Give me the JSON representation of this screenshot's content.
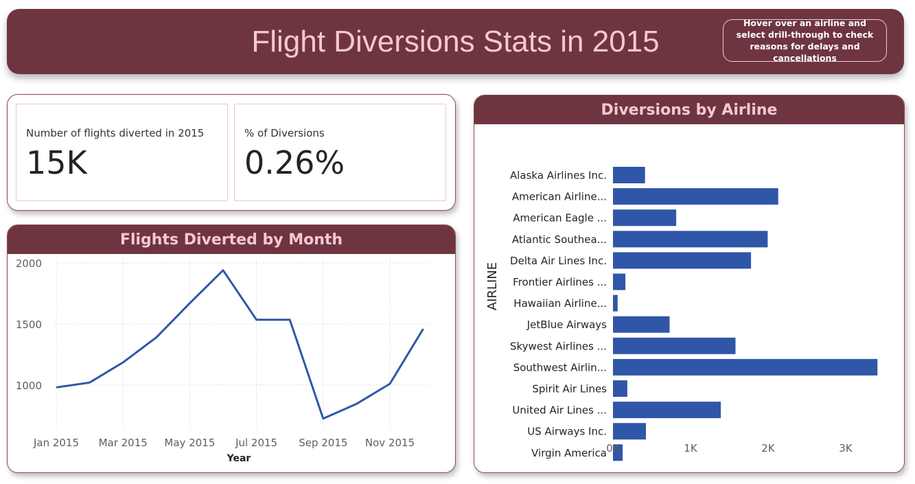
{
  "header": {
    "title": "Flight Diversions Stats in 2015",
    "hint": "Hover over an airline and select drill-through to check reasons for delays and cancellations"
  },
  "kpis": [
    {
      "label": "Number of flights diverted in 2015",
      "value": "15K"
    },
    {
      "label": "% of Diversions",
      "value": "0.26%"
    }
  ],
  "colors": {
    "accent": "#6e3541",
    "series": "#3056a8",
    "title_text": "#f5c8d0"
  },
  "chart_data": [
    {
      "type": "line",
      "title": "Flights Diverted by Month",
      "xlabel": "Year",
      "ylabel": "",
      "x": [
        "Jan 2015",
        "Feb 2015",
        "Mar 2015",
        "Apr 2015",
        "May 2015",
        "Jun 2015",
        "Jul 2015",
        "Aug 2015",
        "Sep 2015",
        "Oct 2015",
        "Nov 2015",
        "Dec 2015"
      ],
      "x_tick_labels": [
        "Jan 2015",
        "Mar 2015",
        "May 2015",
        "Jul 2015",
        "Sep 2015",
        "Nov 2015"
      ],
      "values": [
        980,
        1020,
        1185,
        1390,
        1670,
        1940,
        1535,
        1535,
        725,
        845,
        1010,
        1460
      ],
      "y_ticks": [
        "1000",
        "1500",
        "2000"
      ],
      "ylim": [
        650,
        2000
      ],
      "grid": true
    },
    {
      "type": "bar",
      "orientation": "horizontal",
      "title": "Diversions by Airline",
      "ylabel": "AIRLINE",
      "xlabel": "",
      "categories": [
        "Alaska Airlines Inc.",
        "American Airline...",
        "American Eagle ...",
        "Atlantic Southea...",
        "Delta Air Lines Inc.",
        "Frontier Airlines ...",
        "Hawaiian Airline...",
        "JetBlue Airways",
        "Skywest Airlines ...",
        "Southwest Airlin...",
        "Spirit Air Lines",
        "United Air Lines ...",
        "US Airways Inc.",
        "Virgin America"
      ],
      "values": [
        413,
        2130,
        815,
        1995,
        1780,
        160,
        60,
        730,
        1580,
        3410,
        185,
        1390,
        425,
        125
      ],
      "x_ticks": [
        "0K",
        "1K",
        "2K",
        "3K"
      ],
      "xlim": [
        0,
        3500
      ],
      "grid": false
    }
  ]
}
